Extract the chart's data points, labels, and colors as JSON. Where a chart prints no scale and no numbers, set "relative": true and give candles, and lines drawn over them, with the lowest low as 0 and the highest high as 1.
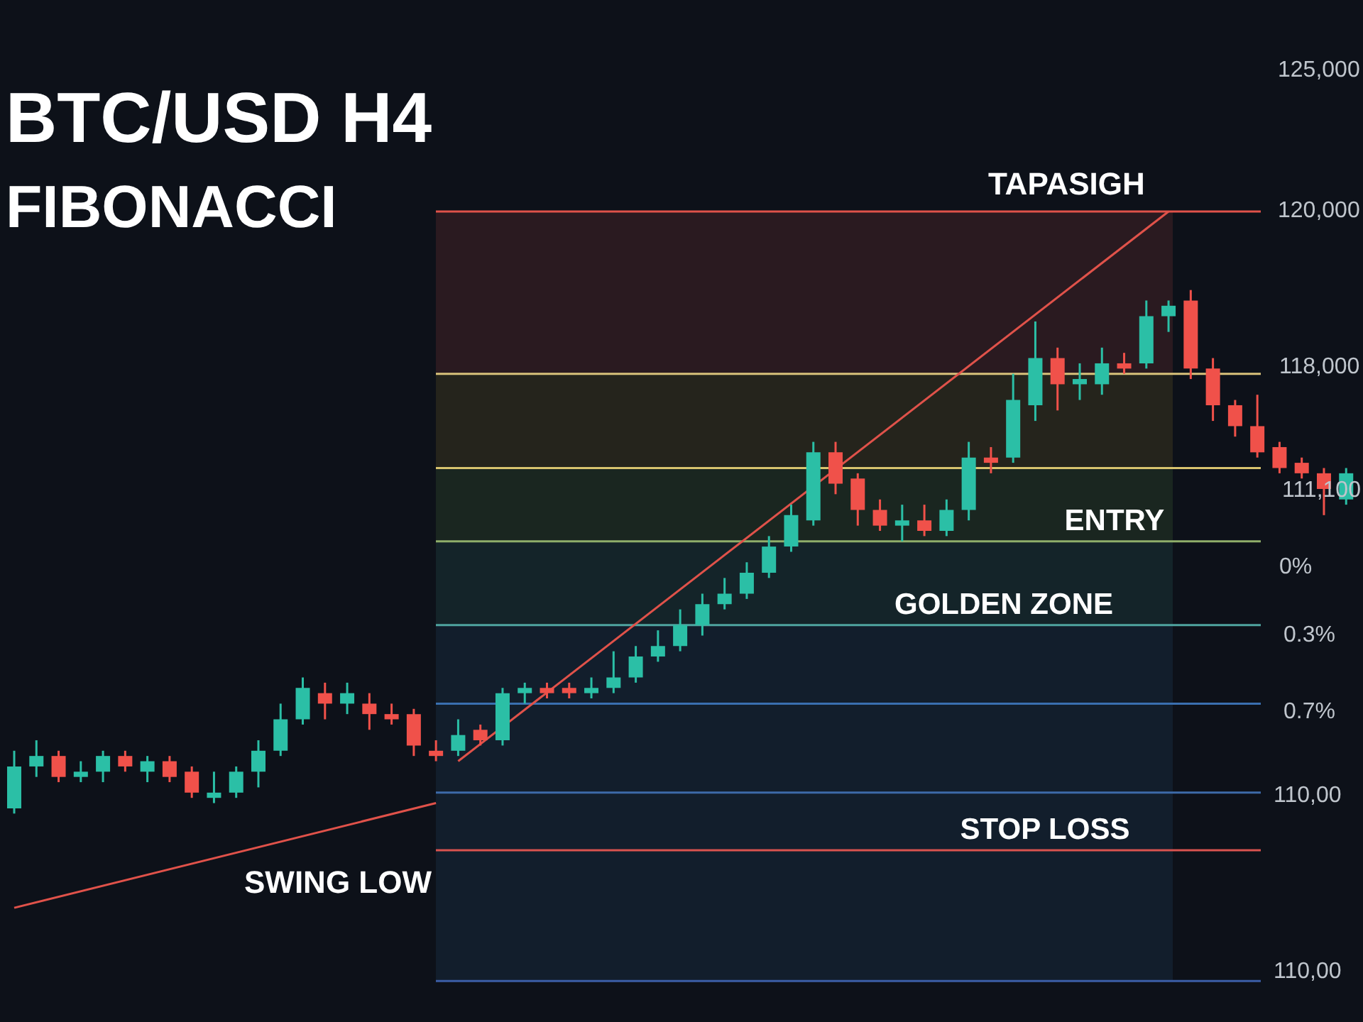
{
  "chart_data": {
    "type": "candlestick",
    "title": "BTC/USD H4",
    "subtitle": "FIBONACCI",
    "relative": true,
    "categories": [
      null,
      null,
      null,
      null,
      null,
      null,
      null,
      null,
      null,
      null,
      null,
      null,
      null,
      null,
      null,
      null,
      null,
      null,
      null,
      null,
      null,
      null,
      null,
      null,
      null,
      null,
      null,
      null,
      null,
      null,
      null,
      null,
      null,
      null,
      null,
      null,
      null,
      null,
      null,
      null,
      null,
      null,
      null,
      null,
      null,
      null,
      null,
      null,
      null,
      null,
      null,
      null,
      null,
      null,
      null,
      null,
      null,
      null,
      null,
      null,
      null
    ],
    "ohlc": [
      [
        0.01,
        0.12,
        0,
        0.09
      ],
      [
        0.09,
        0.14,
        0.07,
        0.11
      ],
      [
        0.11,
        0.12,
        0.06,
        0.07
      ],
      [
        0.07,
        0.1,
        0.06,
        0.08
      ],
      [
        0.08,
        0.12,
        0.06,
        0.11
      ],
      [
        0.11,
        0.12,
        0.08,
        0.09
      ],
      [
        0.08,
        0.11,
        0.06,
        0.1
      ],
      [
        0.1,
        0.11,
        0.06,
        0.07
      ],
      [
        0.08,
        0.09,
        0.03,
        0.04
      ],
      [
        0.03,
        0.08,
        0.02,
        0.04
      ],
      [
        0.04,
        0.09,
        0.03,
        0.08
      ],
      [
        0.08,
        0.14,
        0.05,
        0.12
      ],
      [
        0.12,
        0.21,
        0.11,
        0.18
      ],
      [
        0.18,
        0.26,
        0.17,
        0.24
      ],
      [
        0.23,
        0.25,
        0.18,
        0.21
      ],
      [
        0.21,
        0.25,
        0.19,
        0.23
      ],
      [
        0.21,
        0.23,
        0.16,
        0.19
      ],
      [
        0.19,
        0.21,
        0.17,
        0.18
      ],
      [
        0.19,
        0.2,
        0.11,
        0.13
      ],
      [
        0.12,
        0.14,
        0.1,
        0.11
      ],
      [
        0.12,
        0.18,
        0.11,
        0.15
      ],
      [
        0.16,
        0.17,
        0.13,
        0.14
      ],
      [
        0.14,
        0.24,
        0.13,
        0.23
      ],
      [
        0.23,
        0.25,
        0.21,
        0.24
      ],
      [
        0.24,
        0.25,
        0.22,
        0.23
      ],
      [
        0.24,
        0.25,
        0.22,
        0.23
      ],
      [
        0.23,
        0.26,
        0.22,
        0.24
      ],
      [
        0.24,
        0.31,
        0.23,
        0.26
      ],
      [
        0.26,
        0.32,
        0.25,
        0.3
      ],
      [
        0.3,
        0.35,
        0.29,
        0.32
      ],
      [
        0.32,
        0.39,
        0.31,
        0.36
      ],
      [
        0.36,
        0.42,
        0.34,
        0.4
      ],
      [
        0.4,
        0.45,
        0.39,
        0.42
      ],
      [
        0.42,
        0.48,
        0.41,
        0.46
      ],
      [
        0.46,
        0.53,
        0.45,
        0.51
      ],
      [
        0.51,
        0.59,
        0.5,
        0.57
      ],
      [
        0.56,
        0.71,
        0.55,
        0.69
      ],
      [
        0.69,
        0.71,
        0.61,
        0.63
      ],
      [
        0.64,
        0.65,
        0.55,
        0.58
      ],
      [
        0.58,
        0.6,
        0.54,
        0.55
      ],
      [
        0.55,
        0.59,
        0.52,
        0.56
      ],
      [
        0.56,
        0.59,
        0.53,
        0.54
      ],
      [
        0.54,
        0.6,
        0.53,
        0.58
      ],
      [
        0.58,
        0.71,
        0.56,
        0.68
      ],
      [
        0.68,
        0.7,
        0.65,
        0.67
      ],
      [
        0.68,
        0.84,
        0.67,
        0.79
      ],
      [
        0.78,
        0.94,
        0.75,
        0.87
      ],
      [
        0.87,
        0.89,
        0.77,
        0.82
      ],
      [
        0.82,
        0.86,
        0.79,
        0.83
      ],
      [
        0.82,
        0.89,
        0.8,
        0.86
      ],
      [
        0.86,
        0.88,
        0.84,
        0.85
      ],
      [
        0.86,
        0.98,
        0.85,
        0.95
      ],
      [
        0.95,
        0.98,
        0.92,
        0.97
      ],
      [
        0.98,
        1,
        0.83,
        0.85
      ],
      [
        0.85,
        0.87,
        0.75,
        0.78
      ],
      [
        0.78,
        0.79,
        0.72,
        0.74
      ],
      [
        0.74,
        0.8,
        0.68,
        0.69
      ],
      [
        0.7,
        0.71,
        0.65,
        0.66
      ],
      [
        0.67,
        0.68,
        0.64,
        0.65
      ],
      [
        0.65,
        0.66,
        0.57,
        0.62
      ],
      [
        0.6,
        0.66,
        0.59,
        0.65
      ]
    ],
    "series": [
      {
        "type": "line",
        "values": [
          -0.18,
          null,
          null,
          null,
          null,
          null,
          null,
          null,
          null,
          null,
          null,
          null,
          null,
          null,
          null,
          null,
          null,
          null,
          null,
          0.02,
          null,
          null,
          null,
          null,
          null,
          null,
          null,
          null,
          null,
          null,
          null,
          null,
          null,
          null,
          null,
          null,
          null,
          null,
          null,
          null,
          null,
          null,
          null,
          null,
          null,
          null,
          null,
          null,
          null,
          null,
          null,
          null,
          null,
          null,
          null,
          null,
          null,
          null,
          null,
          null,
          null
        ],
        "color": "#e0524a"
      },
      {
        "type": "line",
        "values": [
          null,
          null,
          null,
          null,
          null,
          null,
          null,
          null,
          null,
          null,
          null,
          null,
          null,
          null,
          null,
          null,
          null,
          null,
          null,
          null,
          0.1,
          null,
          null,
          null,
          null,
          null,
          null,
          null,
          null,
          null,
          null,
          null,
          null,
          null,
          null,
          null,
          null,
          null,
          null,
          null,
          null,
          null,
          null,
          null,
          null,
          null,
          null,
          null,
          null,
          null,
          null,
          null,
          1.15,
          null,
          null,
          null,
          null,
          null,
          null,
          null,
          null
        ],
        "color": "#e0524a"
      }
    ],
    "bands": [
      {
        "axis": "y",
        "from": 0.84,
        "to": 1.15,
        "color": "#2a1a20"
      },
      {
        "axis": "y",
        "from": 0.66,
        "to": 0.84,
        "color": "#25241c"
      },
      {
        "axis": "y",
        "from": 0.52,
        "to": 0.66,
        "color": "#1a2620"
      },
      {
        "axis": "y",
        "from": 0.36,
        "to": 0.52,
        "color": "#142429"
      },
      {
        "axis": "y",
        "from": -0.32,
        "to": 0.36,
        "color": "#121e2c"
      }
    ],
    "ref_lines": [
      {
        "axis": "y",
        "value": 1.15,
        "color": "#e0524a"
      },
      {
        "axis": "y",
        "value": 0.84,
        "color": "#d9c27a"
      },
      {
        "axis": "y",
        "value": 0.66,
        "color": "#d8c36e"
      },
      {
        "axis": "y",
        "value": 0.52,
        "color": "#8fae6a"
      },
      {
        "axis": "y",
        "value": 0.36,
        "color": "#4fa5a0"
      },
      {
        "axis": "y",
        "value": 0.21,
        "color": "#3a6fb0"
      },
      {
        "axis": "y",
        "value": 0.04,
        "color": "#3d6aa8"
      },
      {
        "axis": "y",
        "value": -0.07,
        "color": "#d9534f"
      },
      {
        "axis": "y",
        "value": -0.32,
        "color": "#3b5ea6"
      }
    ],
    "annotations": [
      {
        "text": "ENTRY",
        "y": 0.52
      },
      {
        "text": "GOLDEN ZONE",
        "y": 0.36
      },
      {
        "text": "STOP LOSS",
        "y": -0.07
      },
      "TAPASIGH",
      "SWING LOW",
      "125,000",
      "120,000",
      "118,000",
      "111,100",
      "0%",
      "0.3%",
      "0.7%",
      "110,00",
      "110,00"
    ]
  }
}
